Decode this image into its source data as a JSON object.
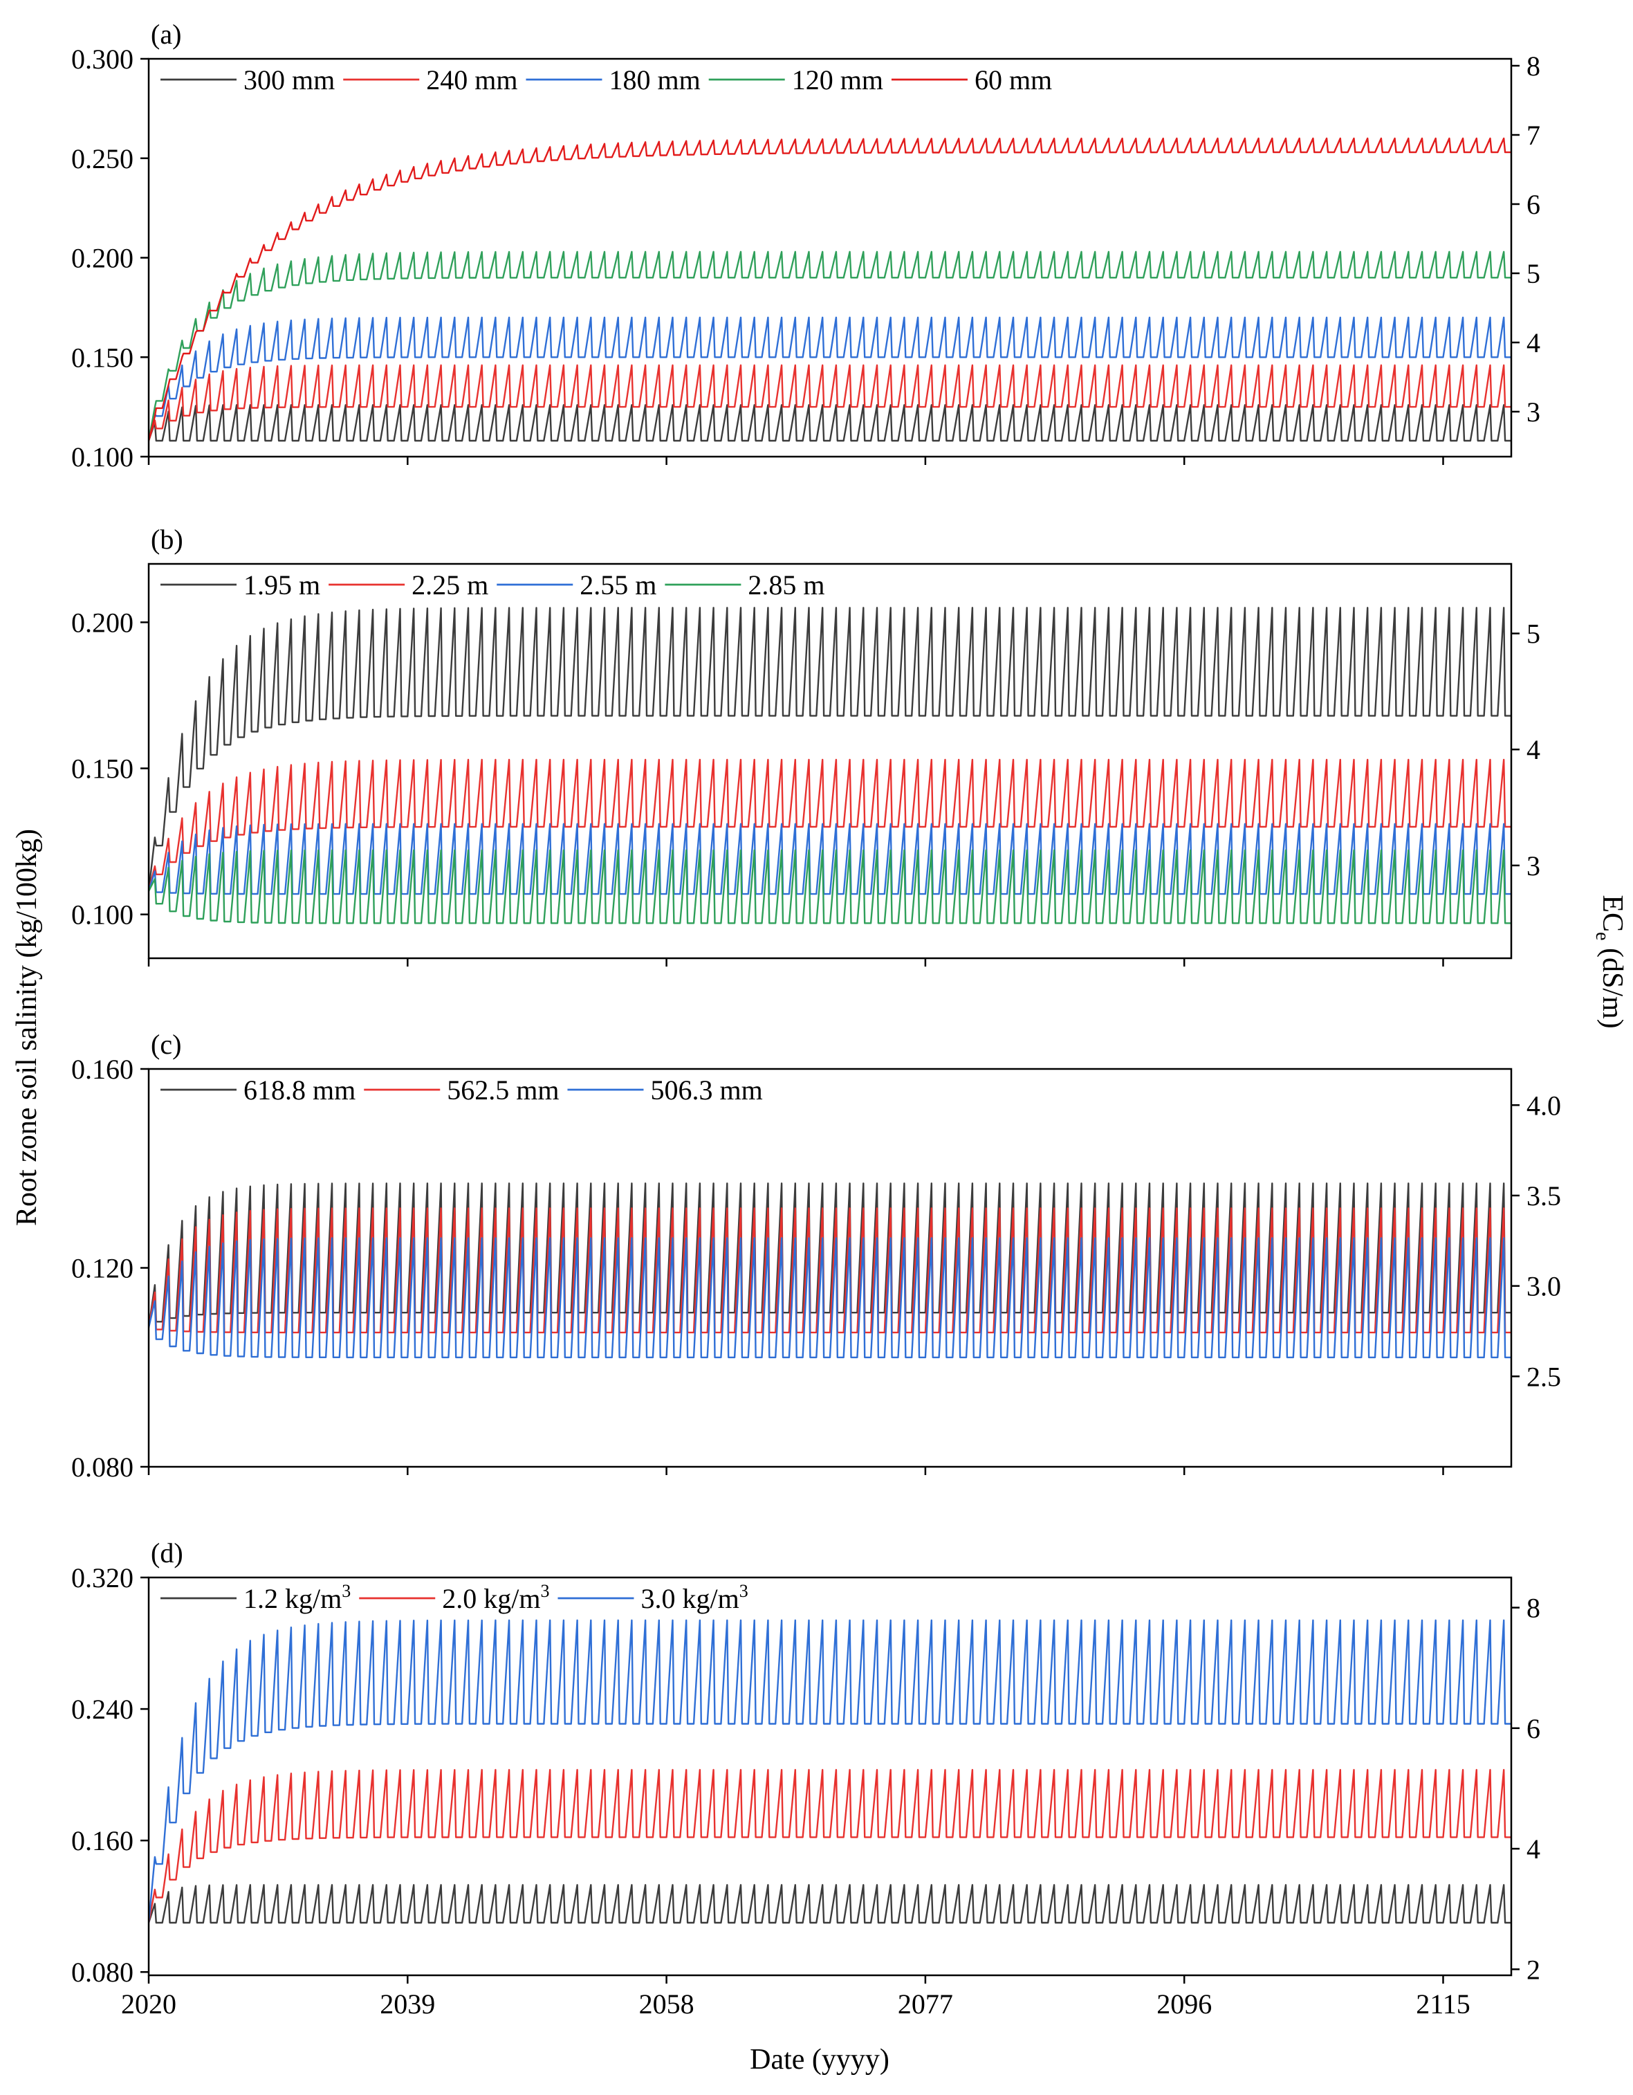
{
  "figure": {
    "y_axis_title": "Root zone soil salinity (kg/100kg)",
    "y2_axis_title": "EC",
    "y2_axis_subscript": "e",
    "y2_axis_unit": " (dS/m)",
    "x_axis_title": "Date (yyyy)",
    "x_tick_labels": [
      "2020",
      "2039",
      "2058",
      "2077",
      "2096",
      "2115"
    ],
    "x_tick_values": [
      2020,
      2039,
      2058,
      2077,
      2096,
      2115
    ],
    "xlim": [
      2020,
      2120
    ]
  },
  "chart_data": [
    {
      "type": "line",
      "panel_label": "(a)",
      "ylim": [
        0.1,
        0.3
      ],
      "y_ticks": [
        0.1,
        0.15,
        0.2,
        0.25,
        0.3
      ],
      "y_tick_labels": [
        "0.100",
        "0.150",
        "0.200",
        "0.250",
        "0.300"
      ],
      "y2lim": [
        2.35,
        8.1
      ],
      "y2_ticks": [
        3,
        4,
        5,
        6,
        7,
        8
      ],
      "y2_tick_labels": [
        "3",
        "4",
        "5",
        "6",
        "7",
        "8"
      ],
      "series": [
        {
          "name": "300 mm",
          "color": "#3c3c3c",
          "start": 0.108,
          "peak_steady": 0.126,
          "trough_steady": 0.108,
          "rate": 1.0
        },
        {
          "name": "240 mm",
          "color": "#e8322f",
          "start": 0.108,
          "peak_steady": 0.146,
          "trough_steady": 0.125,
          "rate": 0.45
        },
        {
          "name": "180 mm",
          "color": "#2f6fd6",
          "start": 0.108,
          "peak_steady": 0.17,
          "trough_steady": 0.15,
          "rate": 0.35
        },
        {
          "name": "120 mm",
          "color": "#2fa05a",
          "start": 0.108,
          "peak_steady": 0.203,
          "trough_steady": 0.19,
          "rate": 0.28
        },
        {
          "name": "60 mm",
          "color": "#e21b1b",
          "start": 0.108,
          "peak_steady": 0.26,
          "trough_steady": 0.253,
          "rate": 0.12
        }
      ]
    },
    {
      "type": "line",
      "panel_label": "(b)",
      "ylim": [
        0.085,
        0.22
      ],
      "y_ticks": [
        0.1,
        0.15,
        0.2
      ],
      "y_tick_labels": [
        "0.100",
        "0.150",
        "0.200"
      ],
      "y2lim": [
        2.2,
        5.6
      ],
      "y2_ticks": [
        3,
        4,
        5
      ],
      "y2_tick_labels": [
        "3",
        "4",
        "5"
      ],
      "series": [
        {
          "name": "1.95 m",
          "color": "#3c3c3c",
          "start": 0.108,
          "peak_steady": 0.205,
          "trough_steady": 0.168,
          "rate": 0.3
        },
        {
          "name": "2.25 m",
          "color": "#e8322f",
          "start": 0.108,
          "peak_steady": 0.153,
          "trough_steady": 0.13,
          "rate": 0.3
        },
        {
          "name": "2.55 m",
          "color": "#2f6fd6",
          "start": 0.108,
          "peak_steady": 0.131,
          "trough_steady": 0.107,
          "rate": 0.5
        },
        {
          "name": "2.85 m",
          "color": "#2fa05a",
          "start": 0.108,
          "peak_steady": 0.122,
          "trough_steady": 0.097,
          "rate": 0.5
        }
      ]
    },
    {
      "type": "line",
      "panel_label": "(c)",
      "ylim": [
        0.08,
        0.16
      ],
      "y_ticks": [
        0.08,
        0.12,
        0.16
      ],
      "y_tick_labels": [
        "0.080",
        "0.120",
        "0.160"
      ],
      "y2lim": [
        2.0,
        4.2
      ],
      "y2_ticks": [
        2.5,
        3.0,
        3.5,
        4.0
      ],
      "y2_tick_labels": [
        "2.5",
        "3.0",
        "3.5",
        "4.0"
      ],
      "series": [
        {
          "name": "618.8 mm",
          "color": "#3c3c3c",
          "start": 0.108,
          "peak_steady": 0.137,
          "trough_steady": 0.111,
          "rate": 0.5
        },
        {
          "name": "562.5 mm",
          "color": "#e8322f",
          "start": 0.108,
          "peak_steady": 0.132,
          "trough_steady": 0.107,
          "rate": 0.5
        },
        {
          "name": "506.3 mm",
          "color": "#2f6fd6",
          "start": 0.108,
          "peak_steady": 0.126,
          "trough_steady": 0.102,
          "rate": 0.5
        }
      ]
    },
    {
      "type": "line",
      "panel_label": "(d)",
      "ylim": [
        0.078,
        0.32
      ],
      "y_ticks": [
        0.08,
        0.16,
        0.24,
        0.32
      ],
      "y_tick_labels": [
        "0.080",
        "0.160",
        "0.240",
        "0.320"
      ],
      "y2lim": [
        1.9,
        8.5
      ],
      "y2_ticks": [
        2,
        4,
        6,
        8
      ],
      "y2_tick_labels": [
        "2",
        "4",
        "6",
        "8"
      ],
      "series": [
        {
          "name": "1.2 kg/m",
          "superscript": "3",
          "color": "#3c3c3c",
          "start": 0.11,
          "peak_steady": 0.133,
          "trough_steady": 0.11,
          "rate": 1.0
        },
        {
          "name": "2.0 kg/m",
          "superscript": "3",
          "color": "#e8322f",
          "start": 0.11,
          "peak_steady": 0.203,
          "trough_steady": 0.162,
          "rate": 0.35
        },
        {
          "name": "3.0 kg/m",
          "superscript": "3",
          "color": "#2f6fd6",
          "start": 0.11,
          "peak_steady": 0.294,
          "trough_steady": 0.231,
          "rate": 0.35
        }
      ]
    }
  ]
}
